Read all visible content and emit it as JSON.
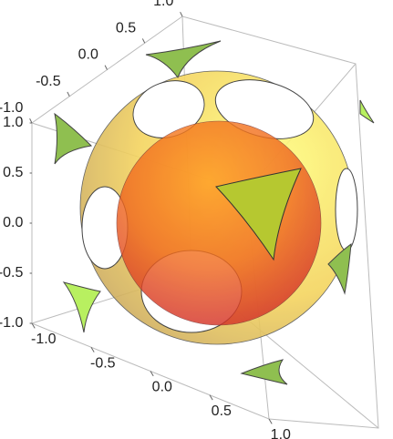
{
  "chart_data": {
    "type": "plot3d",
    "xticks": [
      {
        "value": -1,
        "label": "-1.0"
      },
      {
        "value": -0.5,
        "label": "-0.5"
      },
      {
        "value": 0,
        "label": "0.0"
      },
      {
        "value": 0.5,
        "label": "0.5"
      },
      {
        "value": 1,
        "label": "1.0"
      }
    ],
    "yticks": [
      {
        "value": -1,
        "label": "-1.0"
      },
      {
        "value": -0.5,
        "label": "-0.5"
      },
      {
        "value": 0,
        "label": "0.0"
      },
      {
        "value": 0.5,
        "label": "0.5"
      },
      {
        "value": 1,
        "label": "1.0"
      }
    ],
    "zticks": [
      {
        "value": -1,
        "label": "-1.0"
      },
      {
        "value": -0.5,
        "label": "-0.5"
      },
      {
        "value": 0,
        "label": "0.0"
      },
      {
        "value": 0.5,
        "label": "0.5"
      },
      {
        "value": 1,
        "label": "1.0"
      }
    ],
    "xlim": [
      -1,
      1
    ],
    "ylim": [
      -1,
      1
    ],
    "zlim": [
      -1,
      1
    ]
  }
}
